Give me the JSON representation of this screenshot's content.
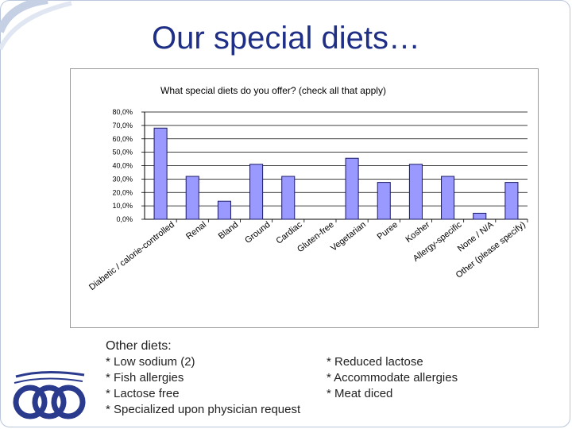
{
  "slide": {
    "title": "Our special diets…",
    "colors": {
      "title": "#1f2f86",
      "bar_fill": "#9999ff",
      "bar_stroke": "#1a1a66",
      "grid": "#000000",
      "logo": "#2a3a8c"
    }
  },
  "chart_data": {
    "type": "bar",
    "title": "What special diets do you offer? (check all that apply)",
    "categories": [
      "Diabetic / calorie-controlled",
      "Renal",
      "Bland",
      "Ground",
      "Cardiac",
      "Gluten-free",
      "Vegetarian",
      "Puree",
      "Kosher",
      "Allergy-specific",
      "None / N/A",
      "Other (please specify)"
    ],
    "values": [
      68.0,
      32.0,
      13.5,
      41.0,
      32.0,
      0.0,
      45.5,
      27.5,
      41.0,
      32.0,
      4.5,
      27.5
    ],
    "ylim": [
      0,
      80
    ],
    "yticks": [
      0,
      10,
      20,
      30,
      40,
      50,
      60,
      70,
      80
    ],
    "ytick_labels": [
      "0,0%",
      "10,0%",
      "20,0%",
      "30,0%",
      "40,0%",
      "50,0%",
      "60,0%",
      "70,0%",
      "80,0%"
    ],
    "xlabel": "",
    "ylabel": "",
    "grid": true,
    "legend": "none"
  },
  "other_diets": {
    "heading": "Other diets:",
    "left_items": [
      "* Low sodium (2)",
      "* Fish allergies",
      "* Lactose free",
      "* Specialized upon physician request"
    ],
    "right_items": [
      "* Reduced lactose",
      "* Accommodate allergies",
      "* Meat diced"
    ]
  }
}
